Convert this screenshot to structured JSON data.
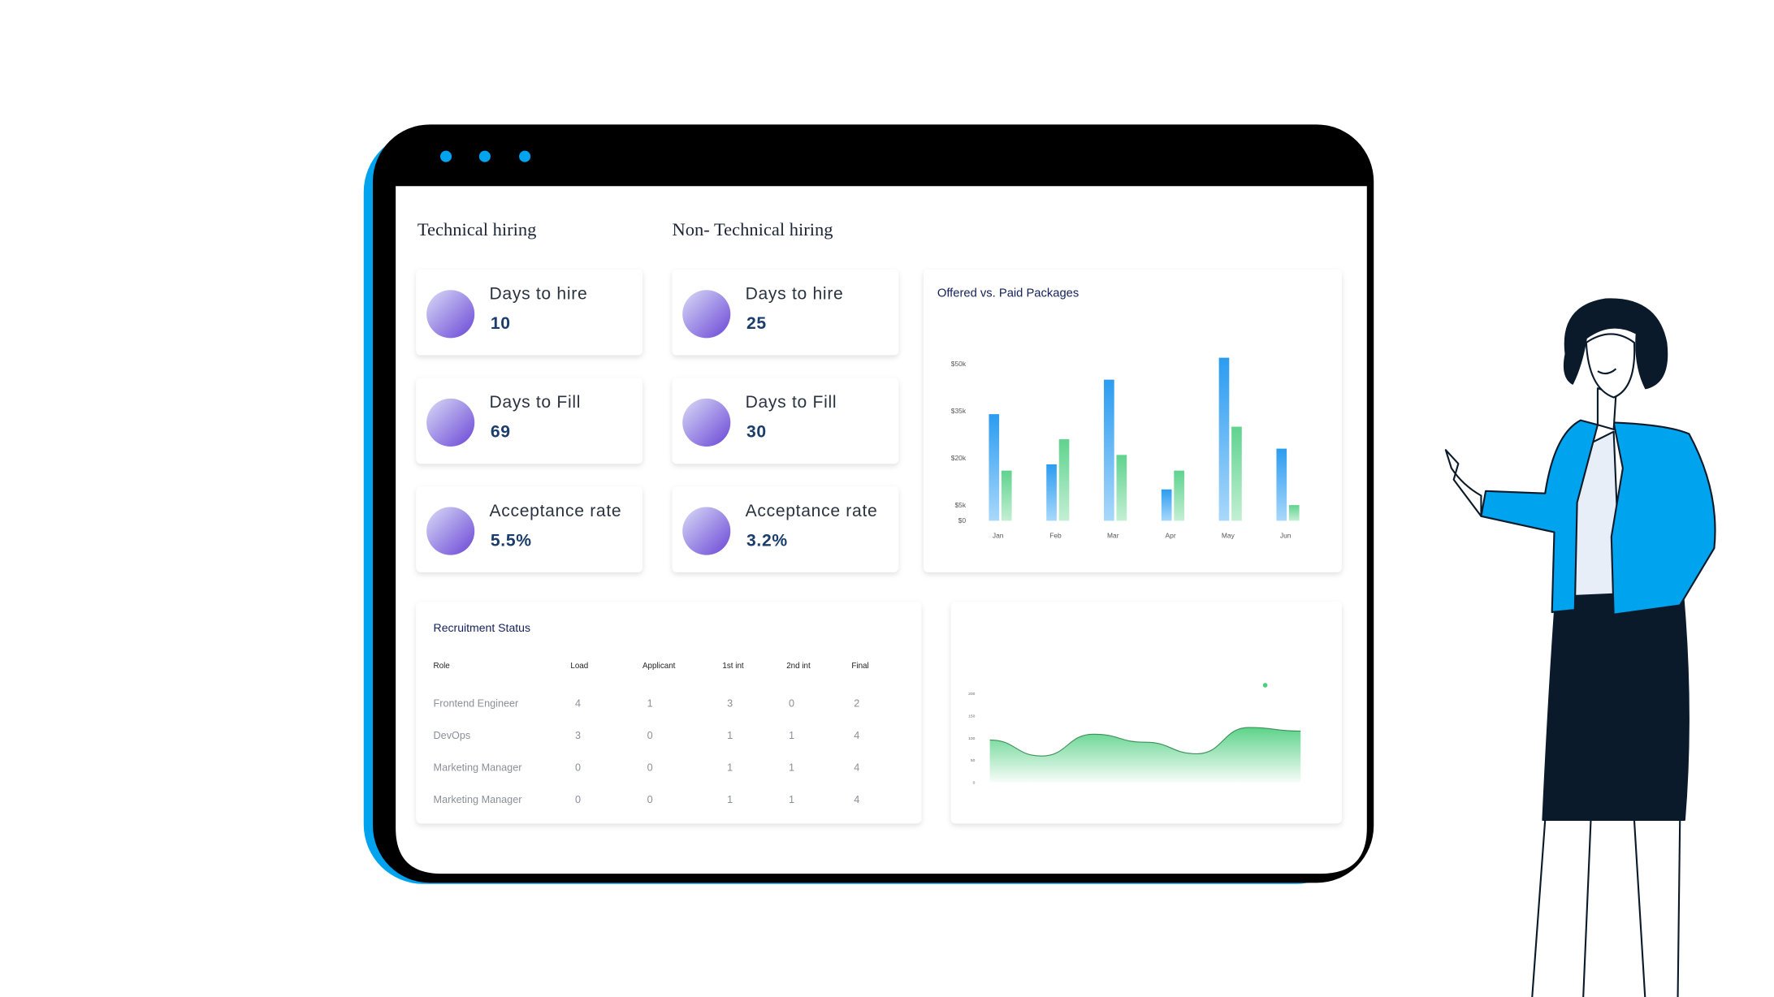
{
  "sections": [
    {
      "title": "Technical hiring",
      "cards": [
        {
          "label": "Days to hire",
          "value": "10"
        },
        {
          "label": "Days to Fill",
          "value": "69"
        },
        {
          "label": "Acceptance rate",
          "value": "5.5%"
        }
      ]
    },
    {
      "title": "Non- Technical hiring",
      "cards": [
        {
          "label": "Days to hire",
          "value": "25"
        },
        {
          "label": "Days to Fill",
          "value": "30"
        },
        {
          "label": "Acceptance rate",
          "value": "3.2%"
        }
      ]
    }
  ],
  "chart_data": [
    {
      "type": "bar",
      "title": "Offered vs. Paid Packages",
      "categories": [
        "Jan",
        "Feb",
        "Mar",
        "Apr",
        "May",
        "Jun"
      ],
      "series": [
        {
          "color": "#3aa6f0",
          "values": [
            34,
            18,
            45,
            10,
            52,
            23
          ]
        },
        {
          "color": "#5fd38e",
          "values": [
            16,
            26,
            21,
            16,
            30,
            5
          ]
        }
      ],
      "ylim": [
        0,
        55
      ],
      "yticks": [
        {
          "value": 0,
          "label": "$0"
        },
        {
          "value": 5,
          "label": "$5k"
        },
        {
          "value": 20,
          "label": "$20k"
        },
        {
          "value": 35,
          "label": "$35k"
        },
        {
          "value": 50,
          "label": "$50k"
        }
      ]
    },
    {
      "type": "area",
      "categories": [
        null,
        null,
        null,
        null,
        null,
        null,
        null
      ],
      "series": [
        {
          "color": "#4cce7d",
          "values": [
            95,
            59,
            108,
            90,
            64,
            123,
            115
          ]
        }
      ],
      "ylim": [
        0,
        200
      ],
      "yticks": [
        0,
        50,
        100,
        150,
        200
      ]
    }
  ],
  "table": {
    "title": "Recruitment Status",
    "header": [
      "Role",
      "Load",
      "Applicant",
      "1st int",
      "2nd int",
      "Final"
    ],
    "rows": [
      [
        "Frontend Engineer",
        "4",
        "1",
        "3",
        "0",
        "2"
      ],
      [
        "DevOps",
        "3",
        "0",
        "1",
        "1",
        "4"
      ],
      [
        "Marketing Manager",
        "0",
        "0",
        "1",
        "1",
        "4"
      ],
      [
        "Marketing Manager",
        "0",
        "0",
        "1",
        "1",
        "4"
      ]
    ]
  }
}
